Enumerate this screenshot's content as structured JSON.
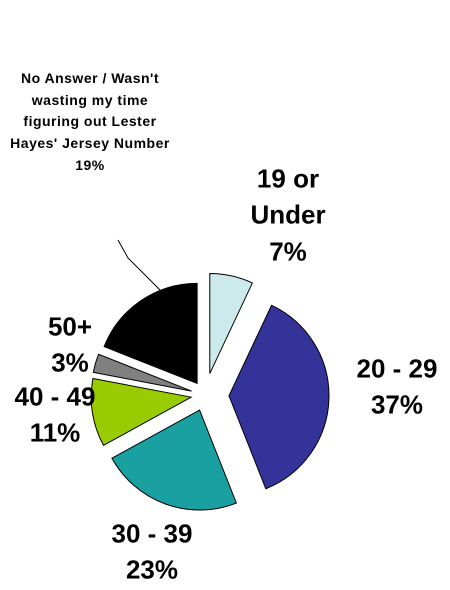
{
  "chart_data": {
    "type": "pie",
    "categories": [
      "19 or Under",
      "20 - 29",
      "30 - 39",
      "40 - 49",
      "50+",
      "No Answer / Wasn't wasting my time figuring out Lester Hayes' Jersey Number"
    ],
    "values": [
      7,
      37,
      23,
      11,
      3,
      19
    ],
    "value_labels": [
      "7%",
      "37%",
      "23%",
      "11%",
      "3%",
      "19%"
    ],
    "colors": [
      "#cceaec",
      "#333399",
      "#1aa0a0",
      "#99cc00",
      "#808080",
      "#000000"
    ]
  }
}
